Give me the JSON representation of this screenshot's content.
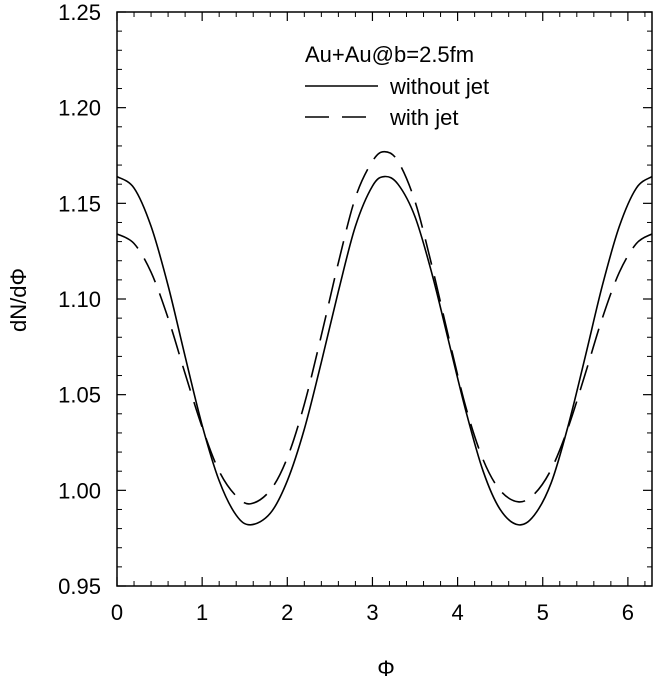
{
  "chart_data": {
    "type": "line",
    "title": "",
    "xlabel": "Φ",
    "ylabel": "dN/dΦ",
    "xlim": [
      0,
      6.2832
    ],
    "ylim": [
      0.95,
      1.25
    ],
    "x_ticks": [
      0,
      1,
      2,
      3,
      4,
      5,
      6
    ],
    "x_tick_labels": [
      "0",
      "1",
      "2",
      "3",
      "4",
      "5",
      "6"
    ],
    "y_ticks": [
      0.95,
      1.0,
      1.05,
      1.1,
      1.15,
      1.2,
      1.25
    ],
    "y_tick_labels": [
      "0.95",
      "1.00",
      "1.05",
      "1.10",
      "1.15",
      "1.20",
      "1.25"
    ],
    "grid": false,
    "legend_title": "Au+Au@b=2.5fm",
    "legend_position": "top-right",
    "series": [
      {
        "name": "without jet",
        "style": "solid",
        "x": [
          0,
          0.2,
          0.4,
          0.6,
          0.8,
          1.0,
          1.2,
          1.4,
          1.5708,
          1.8,
          2.0,
          2.2,
          2.4,
          2.6,
          2.8,
          3.0,
          3.1416,
          3.3,
          3.5,
          3.7,
          3.9,
          4.1,
          4.3,
          4.5,
          4.7124,
          4.9,
          5.1,
          5.3,
          5.5,
          5.7,
          5.9,
          6.1,
          6.2832
        ],
        "y": [
          1.164,
          1.158,
          1.138,
          1.107,
          1.07,
          1.034,
          1.005,
          0.987,
          0.982,
          0.988,
          1.005,
          1.032,
          1.067,
          1.104,
          1.138,
          1.159,
          1.164,
          1.16,
          1.143,
          1.113,
          1.077,
          1.041,
          1.01,
          0.99,
          0.982,
          0.987,
          1.004,
          1.034,
          1.07,
          1.107,
          1.138,
          1.158,
          1.164
        ]
      },
      {
        "name": "with jet",
        "style": "dashed",
        "x": [
          0,
          0.2,
          0.4,
          0.6,
          0.8,
          1.0,
          1.2,
          1.4,
          1.5708,
          1.8,
          2.0,
          2.2,
          2.4,
          2.6,
          2.8,
          3.0,
          3.1416,
          3.3,
          3.5,
          3.7,
          3.9,
          4.1,
          4.3,
          4.5,
          4.7124,
          4.9,
          5.1,
          5.3,
          5.5,
          5.7,
          5.9,
          6.1,
          6.2832
        ],
        "y": [
          1.134,
          1.129,
          1.114,
          1.09,
          1.061,
          1.033,
          1.01,
          0.997,
          0.993,
          1.0,
          1.017,
          1.045,
          1.081,
          1.119,
          1.153,
          1.172,
          1.177,
          1.172,
          1.151,
          1.117,
          1.079,
          1.043,
          1.016,
          1.0,
          0.994,
          0.998,
          1.011,
          1.033,
          1.061,
          1.09,
          1.114,
          1.129,
          1.134
        ]
      }
    ]
  }
}
